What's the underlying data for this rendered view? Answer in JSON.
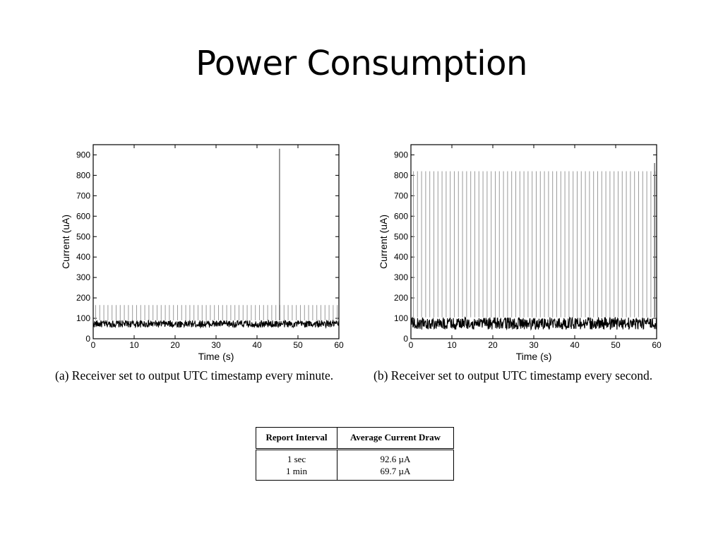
{
  "slide": {
    "title": "Power Consumption"
  },
  "chart_data": [
    {
      "type": "line",
      "xlabel": "Time (s)",
      "ylabel": "Current (uA)",
      "xlim": [
        0,
        60
      ],
      "ylim": [
        0,
        950
      ],
      "xticks": [
        0,
        10,
        20,
        30,
        40,
        50,
        60
      ],
      "yticks": [
        0,
        100,
        200,
        300,
        400,
        500,
        600,
        700,
        800,
        900
      ],
      "baseline_range": [
        55,
        90
      ],
      "periodic_spike": {
        "interval_s": 1,
        "peak": 165
      },
      "events": [
        {
          "x": 45.5,
          "peak": 930
        }
      ],
      "caption": "(a) Receiver set to output UTC timestamp every minute."
    },
    {
      "type": "line",
      "xlabel": "Time (s)",
      "ylabel": "Current (uA)",
      "xlim": [
        0,
        60
      ],
      "ylim": [
        0,
        950
      ],
      "xticks": [
        0,
        10,
        20,
        30,
        40,
        50,
        60
      ],
      "yticks": [
        0,
        100,
        200,
        300,
        400,
        500,
        600,
        700,
        800,
        900
      ],
      "baseline_range": [
        45,
        105
      ],
      "periodic_spike": {
        "interval_s": 1,
        "peak": 820
      },
      "events": [
        {
          "x": 59.5,
          "peak": 860
        }
      ],
      "caption": "(b) Receiver set to output UTC timestamp every second."
    }
  ],
  "table": {
    "headers": [
      "Report Interval",
      "Average Current Draw"
    ],
    "rows": [
      [
        "1 sec",
        "92.6 µA"
      ],
      [
        "1 min",
        "69.7 µA"
      ]
    ]
  }
}
